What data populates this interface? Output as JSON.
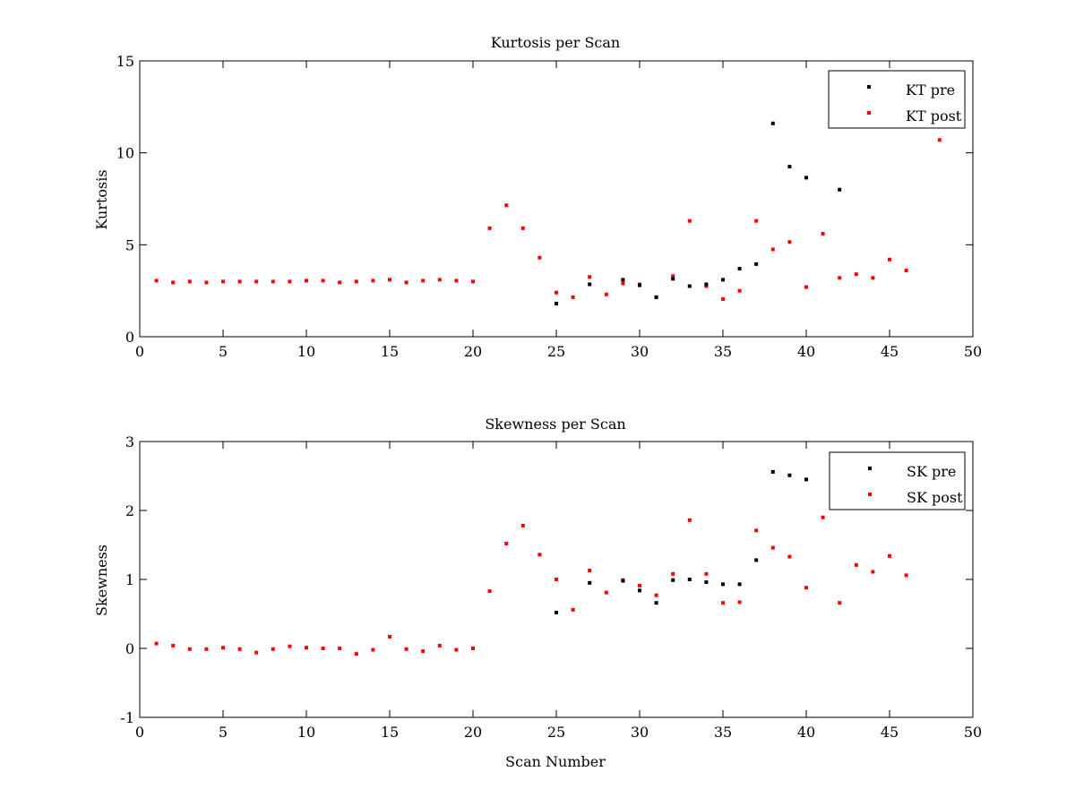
{
  "colors": {
    "pre": "#000000",
    "post": "#ff0000",
    "axes": "#000000",
    "background": "#ffffff"
  },
  "chart_data": [
    {
      "type": "scatter",
      "title": "Kurtosis per Scan",
      "xlabel": "",
      "ylabel": "Kurtosis",
      "xlim": [
        0,
        50
      ],
      "ylim": [
        0,
        15
      ],
      "xticks": [
        0,
        5,
        10,
        15,
        20,
        25,
        30,
        35,
        40,
        45,
        50
      ],
      "yticks": [
        0,
        5,
        10,
        15
      ],
      "grid": false,
      "legend_position": "top-right",
      "series": [
        {
          "name": "KT pre",
          "color": "#000000",
          "marker": "dot",
          "x": [
            25,
            27,
            29,
            30,
            31,
            32,
            33,
            34,
            35,
            36,
            37,
            38,
            39,
            40,
            42
          ],
          "y": [
            1.8,
            2.85,
            3.1,
            2.8,
            2.15,
            3.15,
            2.75,
            2.85,
            3.1,
            3.7,
            3.95,
            11.6,
            9.25,
            8.65,
            8.0
          ]
        },
        {
          "name": "KT post",
          "color": "#ff0000",
          "marker": "dot",
          "x": [
            1,
            2,
            3,
            4,
            5,
            6,
            7,
            8,
            9,
            10,
            11,
            12,
            13,
            14,
            15,
            16,
            17,
            18,
            19,
            20,
            21,
            22,
            23,
            24,
            25,
            26,
            27,
            28,
            29,
            30,
            31,
            32,
            33,
            34,
            35,
            36,
            37,
            38,
            39,
            40,
            41,
            42,
            43,
            44,
            45,
            46,
            48
          ],
          "y": [
            3.05,
            2.95,
            3.0,
            2.95,
            3.0,
            3.0,
            3.0,
            3.0,
            3.0,
            3.05,
            3.05,
            2.95,
            3.0,
            3.05,
            3.1,
            2.95,
            3.05,
            3.1,
            3.05,
            3.0,
            5.9,
            7.15,
            5.9,
            4.3,
            2.4,
            2.15,
            3.25,
            2.3,
            2.9,
            2.85,
            2.15,
            3.3,
            6.3,
            2.75,
            2.05,
            2.5,
            6.3,
            4.75,
            5.15,
            2.7,
            5.6,
            3.2,
            3.4,
            3.2,
            4.2,
            3.6,
            10.7
          ]
        }
      ]
    },
    {
      "type": "scatter",
      "title": "Skewness per Scan",
      "xlabel": "Scan Number",
      "ylabel": "Skewness",
      "xlim": [
        0,
        50
      ],
      "ylim": [
        -1,
        3
      ],
      "xticks": [
        0,
        5,
        10,
        15,
        20,
        25,
        30,
        35,
        40,
        45,
        50
      ],
      "yticks": [
        -1,
        0,
        1,
        2,
        3
      ],
      "grid": false,
      "legend_position": "top-right",
      "series": [
        {
          "name": "SK pre",
          "color": "#000000",
          "marker": "dot",
          "x": [
            25,
            27,
            29,
            30,
            31,
            32,
            33,
            34,
            35,
            36,
            37,
            38,
            39,
            40
          ],
          "y": [
            0.52,
            0.95,
            0.98,
            0.84,
            0.66,
            0.99,
            1.0,
            0.96,
            0.93,
            0.93,
            1.28,
            2.56,
            2.51,
            2.45
          ]
        },
        {
          "name": "SK post",
          "color": "#ff0000",
          "marker": "dot",
          "x": [
            1,
            2,
            3,
            4,
            5,
            6,
            7,
            8,
            9,
            10,
            11,
            12,
            13,
            14,
            15,
            16,
            17,
            18,
            19,
            20,
            21,
            22,
            23,
            24,
            25,
            26,
            27,
            28,
            29,
            30,
            31,
            32,
            33,
            34,
            35,
            36,
            37,
            38,
            39,
            40,
            41,
            42,
            43,
            44,
            45,
            46
          ],
          "y": [
            0.07,
            0.04,
            -0.01,
            -0.01,
            0.01,
            -0.01,
            -0.06,
            -0.01,
            0.03,
            0.01,
            0.0,
            0.0,
            -0.08,
            -0.02,
            0.17,
            -0.01,
            -0.04,
            0.04,
            -0.02,
            0.0,
            0.83,
            1.52,
            1.78,
            1.36,
            1.0,
            0.56,
            1.13,
            0.81,
            0.99,
            0.91,
            0.77,
            1.08,
            1.86,
            1.08,
            0.66,
            0.67,
            1.71,
            1.46,
            1.33,
            0.88,
            1.9,
            0.66,
            1.21,
            1.11,
            1.34,
            1.06
          ]
        }
      ]
    }
  ]
}
